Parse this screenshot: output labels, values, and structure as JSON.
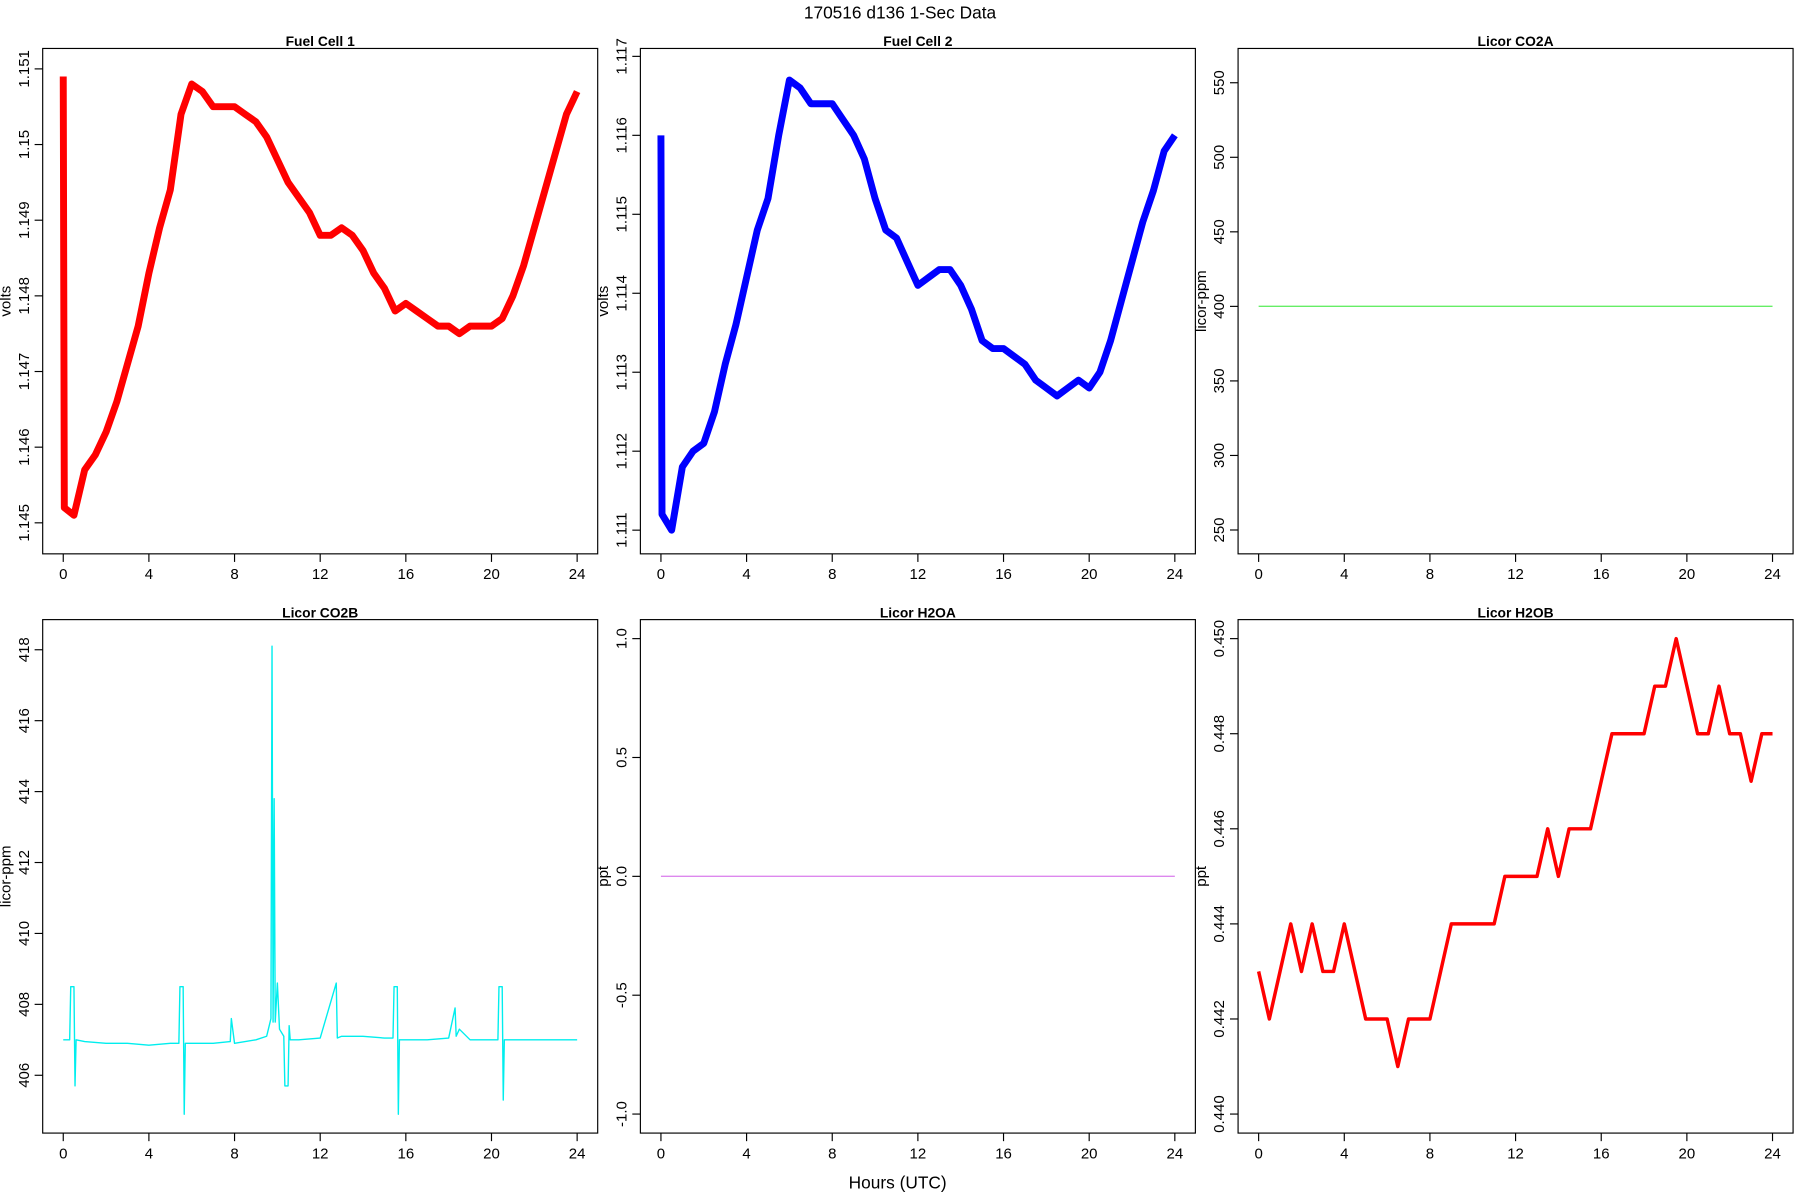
{
  "title": "170516   d136   1-Sec Data",
  "xlabel": "Hours (UTC)",
  "chart_data": [
    {
      "type": "line",
      "title": "Fuel Cell 1",
      "ylabel": "volts",
      "color": "#ff0000",
      "x": [
        0,
        0.05,
        0.5,
        1,
        1.5,
        2,
        2.5,
        3,
        3.5,
        4,
        4.5,
        5,
        5.5,
        6,
        6.5,
        7,
        7.5,
        8,
        8.5,
        9,
        9.5,
        10,
        10.5,
        11,
        11.5,
        12,
        12.5,
        13,
        13.5,
        14,
        14.5,
        15,
        15.5,
        16,
        16.5,
        17,
        17.5,
        18,
        18.5,
        19,
        19.5,
        20,
        20.5,
        21,
        21.5,
        22,
        22.5,
        23,
        23.5,
        24
      ],
      "values": [
        1.1509,
        1.1452,
        1.1451,
        1.1457,
        1.1459,
        1.1462,
        1.1466,
        1.1471,
        1.1476,
        1.1483,
        1.1489,
        1.1494,
        1.1504,
        1.1508,
        1.1507,
        1.1505,
        1.1505,
        1.1505,
        1.1504,
        1.1503,
        1.1501,
        1.1498,
        1.1495,
        1.1493,
        1.1491,
        1.1488,
        1.1488,
        1.1489,
        1.1488,
        1.1486,
        1.1483,
        1.1481,
        1.1478,
        1.1479,
        1.1478,
        1.1477,
        1.1476,
        1.1476,
        1.1475,
        1.1476,
        1.1476,
        1.1476,
        1.1477,
        1.148,
        1.1484,
        1.1489,
        1.1494,
        1.1499,
        1.1504,
        1.1507
      ],
      "xlim": [
        -0.96,
        24.96
      ],
      "xticks": [
        0,
        4,
        8,
        12,
        16,
        20,
        24
      ],
      "ylim": [
        1.14459,
        1.15127
      ],
      "yticks": [
        1.145,
        1.146,
        1.147,
        1.148,
        1.149,
        1.15,
        1.151
      ]
    },
    {
      "type": "line",
      "title": "Fuel Cell 2",
      "ylabel": "volts",
      "color": "#0000ff",
      "x": [
        0,
        0.05,
        0.5,
        1,
        1.5,
        2,
        2.5,
        3,
        3.5,
        4,
        4.5,
        5,
        5.5,
        6,
        6.5,
        7,
        7.5,
        8,
        8.5,
        9,
        9.5,
        10,
        10.5,
        11,
        11.5,
        12,
        12.5,
        13,
        13.5,
        14,
        14.5,
        15,
        15.5,
        16,
        16.5,
        17,
        17.5,
        18,
        18.5,
        19,
        19.5,
        20,
        20.5,
        21,
        21.5,
        22,
        22.5,
        23,
        23.5,
        24
      ],
      "values": [
        1.116,
        1.1112,
        1.111,
        1.1118,
        1.112,
        1.1121,
        1.1125,
        1.1131,
        1.1136,
        1.1142,
        1.1148,
        1.1152,
        1.116,
        1.1167,
        1.1166,
        1.1164,
        1.1164,
        1.1164,
        1.1162,
        1.116,
        1.1157,
        1.1152,
        1.1148,
        1.1147,
        1.1144,
        1.1141,
        1.1142,
        1.1143,
        1.1143,
        1.1141,
        1.1138,
        1.1134,
        1.1133,
        1.1133,
        1.1132,
        1.1131,
        1.1129,
        1.1128,
        1.1127,
        1.1128,
        1.1129,
        1.1128,
        1.113,
        1.1134,
        1.1139,
        1.1144,
        1.1149,
        1.1153,
        1.1158,
        1.116
      ],
      "xlim": [
        -0.96,
        24.96
      ],
      "xticks": [
        0,
        4,
        8,
        12,
        16,
        20,
        24
      ],
      "ylim": [
        1.1107,
        1.1171
      ],
      "yticks": [
        1.111,
        1.112,
        1.113,
        1.114,
        1.115,
        1.116,
        1.117
      ]
    },
    {
      "type": "line",
      "title": "Licor CO2A",
      "ylabel": "licor-ppm",
      "color": "#66ee66",
      "x": [
        0,
        24
      ],
      "values": [
        400,
        400
      ],
      "xlim": [
        -0.96,
        24.96
      ],
      "xticks": [
        0,
        4,
        8,
        12,
        16,
        20,
        24
      ],
      "ylim": [
        234,
        573
      ],
      "yticks": [
        250,
        300,
        350,
        400,
        450,
        500,
        550
      ]
    },
    {
      "type": "line",
      "title": "Licor CO2B",
      "ylabel": "licor-ppm",
      "color": "#00eeee",
      "x": [
        0,
        0.3,
        0.35,
        0.5,
        0.55,
        0.6,
        1,
        2,
        3,
        4,
        5,
        5.4,
        5.45,
        5.6,
        5.65,
        5.7,
        6,
        7,
        7.8,
        7.85,
        8,
        9,
        9.5,
        9.7,
        9.75,
        9.8,
        9.85,
        9.9,
        10,
        10.1,
        10.3,
        10.35,
        10.5,
        10.55,
        10.6,
        11,
        12,
        12.75,
        12.8,
        13,
        14,
        15,
        15.4,
        15.45,
        15.6,
        15.65,
        15.7,
        16,
        17,
        18,
        18.3,
        18.35,
        18.5,
        19,
        20,
        20.3,
        20.35,
        20.5,
        20.55,
        20.6,
        21,
        22,
        23,
        24
      ],
      "values": [
        407,
        407,
        408.5,
        408.5,
        405.7,
        407,
        406.95,
        406.9,
        406.9,
        406.85,
        406.9,
        406.9,
        408.5,
        408.5,
        404.9,
        406.9,
        406.9,
        406.9,
        406.95,
        407.6,
        406.9,
        407,
        407.1,
        407.6,
        418.1,
        407.5,
        413.8,
        407.5,
        408.6,
        407.3,
        407.1,
        405.7,
        405.7,
        407.4,
        407,
        407,
        407.05,
        408.6,
        407.05,
        407.1,
        407.1,
        407.05,
        407.05,
        408.5,
        408.5,
        404.9,
        407,
        407,
        407,
        407.05,
        407.9,
        407.1,
        407.3,
        407,
        407,
        407,
        408.5,
        408.5,
        405.3,
        407,
        407,
        407,
        407,
        407
      ],
      "xlim": [
        -0.96,
        24.96
      ],
      "xticks": [
        0,
        4,
        8,
        12,
        16,
        20,
        24
      ],
      "ylim": [
        404.37,
        418.85
      ],
      "yticks": [
        406,
        408,
        410,
        412,
        414,
        416,
        418
      ]
    },
    {
      "type": "line",
      "title": "Licor H2OA",
      "ylabel": "ppt",
      "color": "#dd88ee",
      "x": [
        0,
        24
      ],
      "values": [
        0,
        0
      ],
      "xlim": [
        -0.96,
        24.96
      ],
      "xticks": [
        0,
        4,
        8,
        12,
        16,
        20,
        24
      ],
      "ylim": [
        -1.08,
        1.08
      ],
      "yticks": [
        {
          "value": -1,
          "label": "-1.0"
        },
        -0.5,
        {
          "value": 0,
          "label": "0.0"
        },
        0.5,
        {
          "value": 1,
          "label": "1.0"
        }
      ]
    },
    {
      "type": "line",
      "title": "Licor H2OB",
      "ylabel": "ppt",
      "color": "#ff0000",
      "x": [
        0,
        0.5,
        1,
        1.5,
        2,
        2.5,
        3,
        3.5,
        4,
        4.5,
        5,
        5.5,
        6,
        6.5,
        7,
        7.5,
        8,
        8.5,
        9,
        9.5,
        10,
        10.5,
        11,
        11.5,
        12,
        12.5,
        13,
        13.5,
        14,
        14.5,
        15,
        15.5,
        16,
        16.5,
        17,
        17.5,
        18,
        18.5,
        19,
        19.5,
        20,
        20.5,
        21,
        21.5,
        22,
        22.5,
        23,
        23.5,
        24
      ],
      "values": [
        0.443,
        0.442,
        0.443,
        0.444,
        0.443,
        0.444,
        0.443,
        0.443,
        0.444,
        0.443,
        0.442,
        0.442,
        0.442,
        0.441,
        0.442,
        0.442,
        0.442,
        0.443,
        0.444,
        0.444,
        0.444,
        0.444,
        0.444,
        0.445,
        0.445,
        0.445,
        0.445,
        0.446,
        0.445,
        0.446,
        0.446,
        0.446,
        0.447,
        0.448,
        0.448,
        0.448,
        0.448,
        0.449,
        0.449,
        0.45,
        0.449,
        0.448,
        0.448,
        0.449,
        0.448,
        0.448,
        0.447,
        0.448,
        0.448
      ],
      "xlim": [
        -0.96,
        24.96
      ],
      "xticks": [
        0,
        4,
        8,
        12,
        16,
        20,
        24
      ],
      "ylim": [
        0.4396,
        0.4504
      ],
      "yticks": [
        {
          "value": 0.44,
          "label": "0.440"
        },
        0.442,
        0.444,
        0.446,
        0.448,
        {
          "value": 0.45,
          "label": "0.450"
        }
      ]
    }
  ]
}
